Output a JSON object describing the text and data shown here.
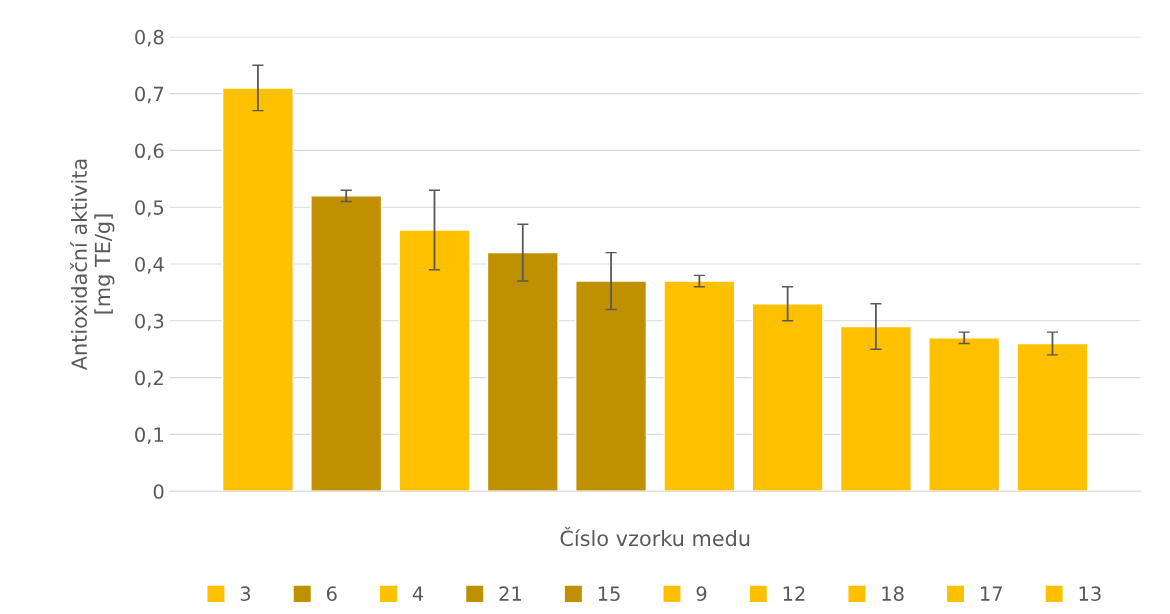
{
  "chart_data": {
    "type": "bar",
    "ylabel": "Antioxidační aktivita\n[mg TE/g]",
    "xlabel": "Číslo vzorku medu",
    "categories": [
      null,
      null,
      null,
      null,
      null,
      null,
      null,
      null,
      null,
      null
    ],
    "series": [
      {
        "name": "3",
        "color": "#ffc000",
        "values": [
          0.71,
          null,
          null,
          null,
          null,
          null,
          null,
          null,
          null,
          null
        ],
        "errors": [
          0.04,
          null,
          null,
          null,
          null,
          null,
          null,
          null,
          null,
          null
        ]
      },
      {
        "name": "6",
        "color": "#bf9000",
        "values": [
          null,
          0.52,
          null,
          null,
          null,
          null,
          null,
          null,
          null,
          null
        ],
        "errors": [
          null,
          0.01,
          null,
          null,
          null,
          null,
          null,
          null,
          null,
          null
        ]
      },
      {
        "name": "4",
        "color": "#ffc000",
        "values": [
          null,
          null,
          0.46,
          null,
          null,
          null,
          null,
          null,
          null,
          null
        ],
        "errors": [
          null,
          null,
          0.07,
          null,
          null,
          null,
          null,
          null,
          null,
          null
        ]
      },
      {
        "name": "21",
        "color": "#bf9000",
        "values": [
          null,
          null,
          null,
          0.42,
          null,
          null,
          null,
          null,
          null,
          null
        ],
        "errors": [
          null,
          null,
          null,
          0.05,
          null,
          null,
          null,
          null,
          null,
          null
        ]
      },
      {
        "name": "15",
        "color": "#bf9000",
        "values": [
          null,
          null,
          null,
          null,
          0.37,
          null,
          null,
          null,
          null,
          null
        ],
        "errors": [
          null,
          null,
          null,
          null,
          0.05,
          null,
          null,
          null,
          null,
          null
        ]
      },
      {
        "name": "9",
        "color": "#ffc000",
        "values": [
          null,
          null,
          null,
          null,
          null,
          0.37,
          null,
          null,
          null,
          null
        ],
        "errors": [
          null,
          null,
          null,
          null,
          null,
          0.01,
          null,
          null,
          null,
          null
        ]
      },
      {
        "name": "12",
        "color": "#ffc000",
        "values": [
          null,
          null,
          null,
          null,
          null,
          null,
          0.33,
          null,
          null,
          null
        ],
        "errors": [
          null,
          null,
          null,
          null,
          null,
          null,
          0.03,
          null,
          null,
          null
        ]
      },
      {
        "name": "18",
        "color": "#ffc000",
        "values": [
          null,
          null,
          null,
          null,
          null,
          null,
          null,
          0.29,
          null,
          null
        ],
        "errors": [
          null,
          null,
          null,
          null,
          null,
          null,
          null,
          0.04,
          null,
          null
        ]
      },
      {
        "name": "17",
        "color": "#ffc000",
        "values": [
          null,
          null,
          null,
          null,
          null,
          null,
          null,
          null,
          0.27,
          null
        ],
        "errors": [
          null,
          null,
          null,
          null,
          null,
          null,
          null,
          null,
          0.01,
          null
        ]
      },
      {
        "name": "13",
        "color": "#ffc000",
        "values": [
          null,
          null,
          null,
          null,
          null,
          null,
          null,
          null,
          null,
          0.26
        ],
        "errors": [
          null,
          null,
          null,
          null,
          null,
          null,
          null,
          null,
          null,
          0.02
        ]
      }
    ],
    "ylim": [
      0,
      0.8
    ],
    "yticks": [
      {
        "value": 0,
        "label": "0"
      },
      {
        "value": 0.1,
        "label": "0,1"
      },
      {
        "value": 0.2,
        "label": "0,2"
      },
      {
        "value": 0.3,
        "label": "0,3"
      },
      {
        "value": 0.4,
        "label": "0,4"
      },
      {
        "value": 0.5,
        "label": "0,5"
      },
      {
        "value": 0.6,
        "label": "0,6"
      },
      {
        "value": 0.7,
        "label": "0,7"
      },
      {
        "value": 0.8,
        "label": "0,8"
      }
    ],
    "grid": "y",
    "legend": "bottom",
    "tick_labels": "y"
  }
}
